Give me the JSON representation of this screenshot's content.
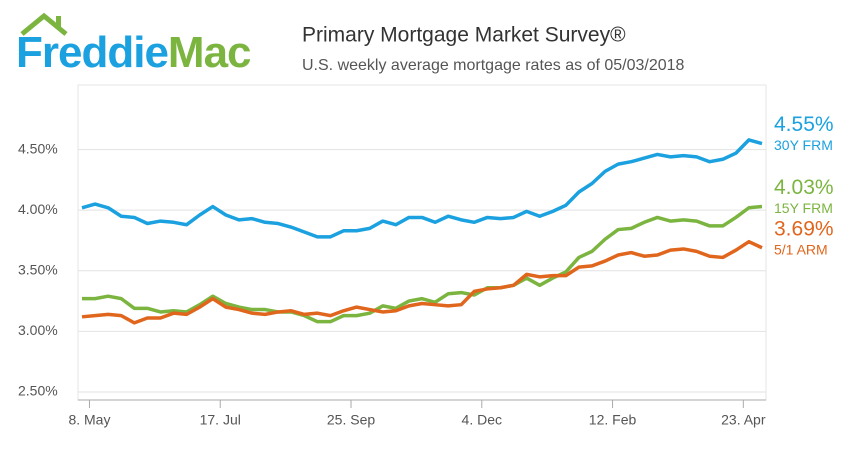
{
  "logo": {
    "left": "Freddie",
    "right": "Mac"
  },
  "chart_data": {
    "type": "line",
    "title": "Primary Mortgage Market Survey®",
    "subtitle": "U.S. weekly average mortgage rates as of 05/03/2018",
    "categories": [
      null,
      "8. May",
      null,
      null,
      null,
      null,
      null,
      null,
      null,
      null,
      null,
      "17. Jul",
      null,
      null,
      null,
      null,
      null,
      null,
      null,
      null,
      null,
      "25. Sep",
      null,
      null,
      null,
      null,
      null,
      null,
      null,
      null,
      null,
      "4. Dec",
      null,
      null,
      null,
      null,
      null,
      null,
      null,
      null,
      null,
      "12. Feb",
      null,
      null,
      null,
      null,
      null,
      null,
      null,
      null,
      null,
      "23. Apr",
      null
    ],
    "series": [
      {
        "name": "30Y FRM",
        "color": "#1ba1df",
        "values": [
          4.02,
          4.05,
          4.02,
          3.95,
          3.94,
          3.89,
          3.91,
          3.9,
          3.88,
          3.96,
          4.03,
          3.96,
          3.92,
          3.93,
          3.9,
          3.89,
          3.86,
          3.82,
          3.78,
          3.78,
          3.83,
          3.83,
          3.85,
          3.91,
          3.88,
          3.94,
          3.94,
          3.9,
          3.95,
          3.92,
          3.9,
          3.94,
          3.93,
          3.94,
          3.99,
          3.95,
          3.99,
          4.04,
          4.15,
          4.22,
          4.32,
          4.38,
          4.4,
          4.43,
          4.46,
          4.44,
          4.45,
          4.44,
          4.4,
          4.42,
          4.47,
          4.58,
          4.55
        ],
        "value_labels": [
          null,
          null,
          null,
          null,
          null,
          null,
          null,
          null,
          null,
          null,
          null,
          null,
          null,
          null,
          null,
          null,
          null,
          null,
          null,
          null,
          null,
          null,
          null,
          null,
          null,
          null,
          null,
          null,
          null,
          null,
          null,
          null,
          null,
          null,
          null,
          null,
          null,
          null,
          null,
          null,
          null,
          null,
          null,
          null,
          null,
          null,
          null,
          null,
          null,
          null,
          null,
          null,
          "4.55%"
        ]
      },
      {
        "name": "15Y FRM",
        "color": "#7bb540",
        "values": [
          3.27,
          3.27,
          3.29,
          3.27,
          3.19,
          3.19,
          3.16,
          3.17,
          3.16,
          3.22,
          3.29,
          3.23,
          3.2,
          3.18,
          3.18,
          3.16,
          3.16,
          3.13,
          3.08,
          3.08,
          3.13,
          3.13,
          3.15,
          3.21,
          3.19,
          3.25,
          3.27,
          3.24,
          3.31,
          3.32,
          3.3,
          3.36,
          3.36,
          3.38,
          3.44,
          3.38,
          3.44,
          3.49,
          3.61,
          3.66,
          3.76,
          3.84,
          3.85,
          3.9,
          3.94,
          3.91,
          3.92,
          3.91,
          3.87,
          3.87,
          3.94,
          4.02,
          4.03
        ],
        "value_labels": [
          null,
          null,
          null,
          null,
          null,
          null,
          null,
          null,
          null,
          null,
          null,
          null,
          null,
          null,
          null,
          null,
          null,
          null,
          null,
          null,
          null,
          null,
          null,
          null,
          null,
          null,
          null,
          null,
          null,
          null,
          null,
          null,
          null,
          null,
          null,
          null,
          null,
          null,
          null,
          null,
          null,
          null,
          null,
          null,
          null,
          null,
          null,
          null,
          null,
          null,
          null,
          null,
          "4.03%"
        ]
      },
      {
        "name": "5/1 ARM",
        "color": "#e0661d",
        "values": [
          3.12,
          3.13,
          3.14,
          3.13,
          3.07,
          3.11,
          3.11,
          3.15,
          3.14,
          3.2,
          3.27,
          3.2,
          3.18,
          3.15,
          3.14,
          3.16,
          3.17,
          3.14,
          3.15,
          3.13,
          3.17,
          3.2,
          3.18,
          3.16,
          3.17,
          3.21,
          3.23,
          3.22,
          3.21,
          3.22,
          3.33,
          3.35,
          3.36,
          3.38,
          3.47,
          3.45,
          3.46,
          3.46,
          3.53,
          3.54,
          3.58,
          3.63,
          3.65,
          3.62,
          3.63,
          3.67,
          3.68,
          3.66,
          3.62,
          3.61,
          3.67,
          3.74,
          3.69
        ],
        "value_labels": [
          null,
          null,
          null,
          null,
          null,
          null,
          null,
          null,
          null,
          null,
          null,
          null,
          null,
          null,
          null,
          null,
          null,
          null,
          null,
          null,
          null,
          null,
          null,
          null,
          null,
          null,
          null,
          null,
          null,
          null,
          null,
          null,
          null,
          null,
          null,
          null,
          null,
          null,
          null,
          null,
          null,
          null,
          null,
          null,
          null,
          null,
          null,
          null,
          null,
          null,
          null,
          null,
          "3.69%"
        ]
      }
    ],
    "ylim": [
      2.45,
      5.0
    ],
    "yticks": [
      {
        "value": 2.5,
        "label": "2.50%"
      },
      {
        "value": 3.0,
        "label": "3.00%"
      },
      {
        "value": 3.5,
        "label": "3.50%"
      },
      {
        "value": 4.0,
        "label": "4.00%"
      },
      {
        "value": 4.5,
        "label": "4.50%"
      }
    ],
    "grid": true
  }
}
